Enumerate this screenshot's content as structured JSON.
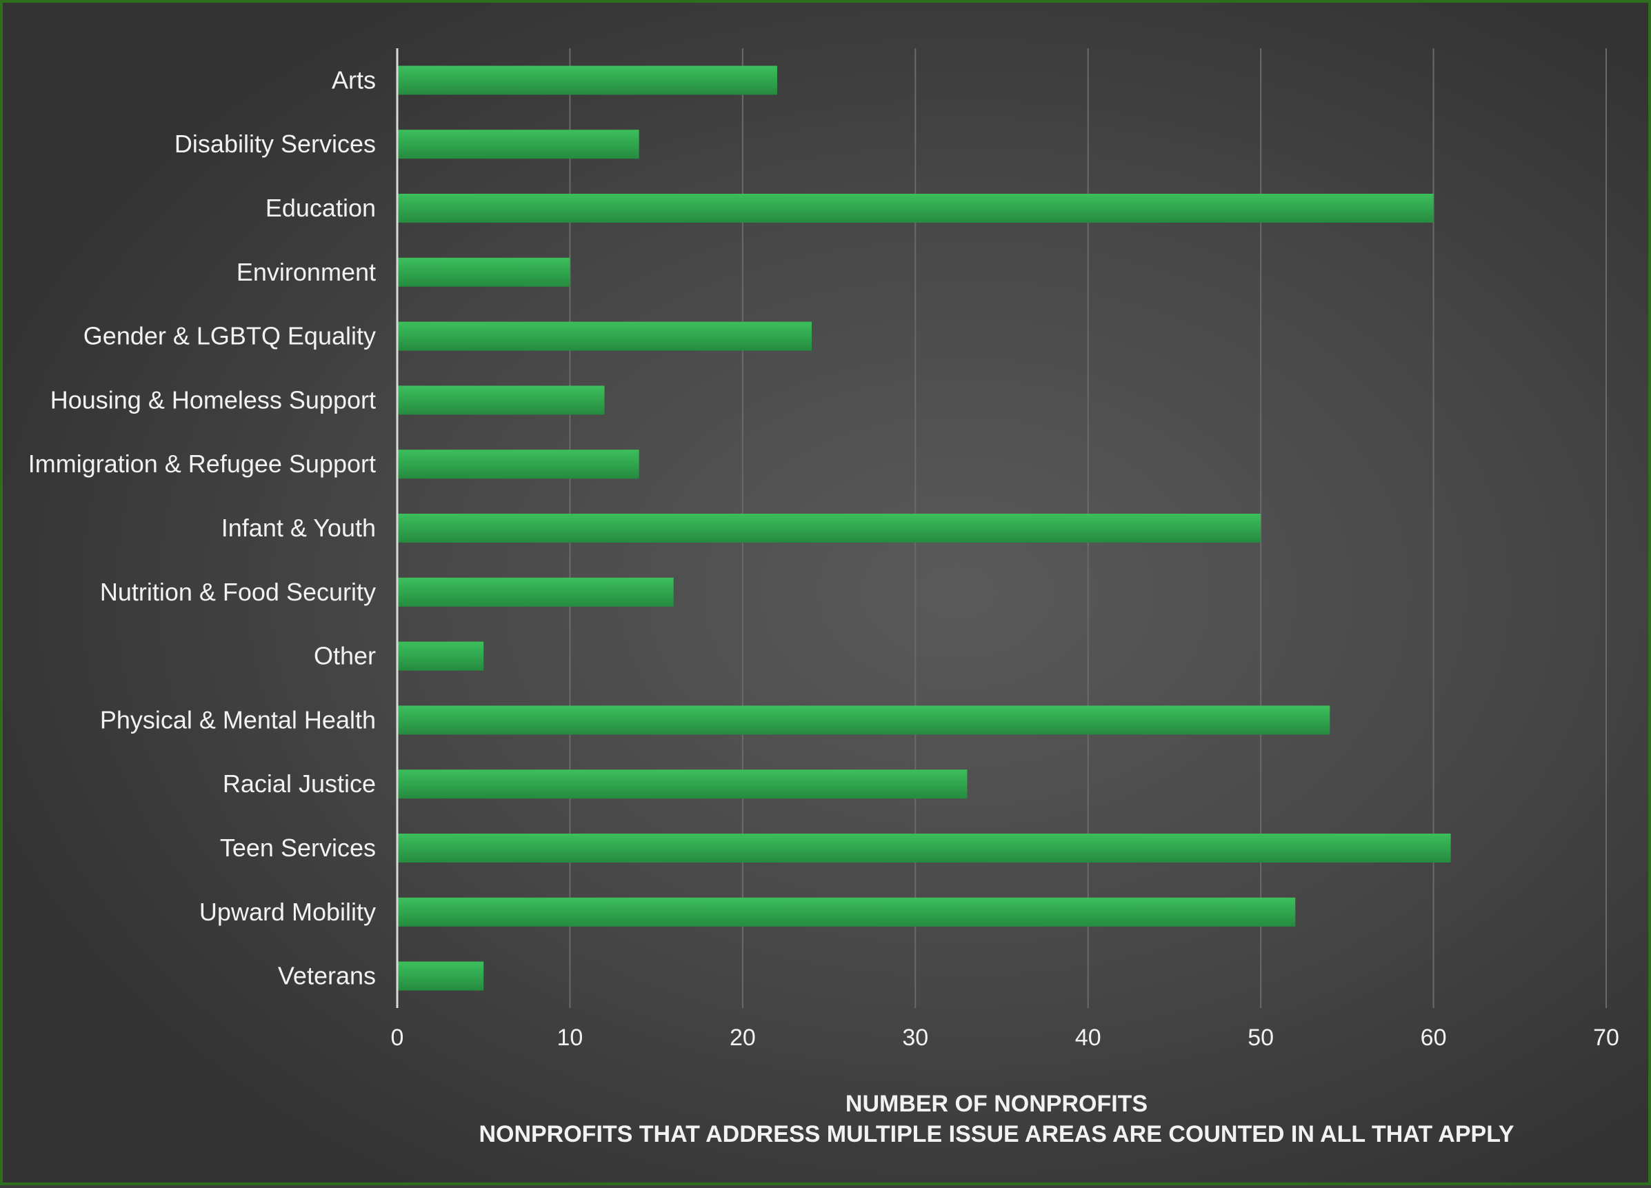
{
  "chart_data": {
    "type": "bar",
    "orientation": "horizontal",
    "title": "",
    "xlabel": "NUMBER OF NONPROFITS",
    "xlabel_note": "NONPROFITS THAT ADDRESS MULTIPLE ISSUE AREAS ARE COUNTED IN ALL THAT APPLY",
    "ylabel": "",
    "categories": [
      "Arts",
      "Disability Services",
      "Education",
      "Environment",
      "Gender & LGBTQ Equality",
      "Housing & Homeless Support",
      "Immigration & Refugee Support",
      "Infant & Youth",
      "Nutrition & Food Security",
      "Other",
      "Physical & Mental Health",
      "Racial Justice",
      "Teen Services",
      "Upward Mobility",
      "Veterans"
    ],
    "values": [
      22,
      14,
      60,
      10,
      24,
      12,
      14,
      50,
      16,
      5,
      54,
      33,
      61,
      52,
      5
    ],
    "xlim": [
      0,
      70
    ],
    "xticks": [
      "0",
      "10",
      "20",
      "30",
      "40",
      "50",
      "60",
      "70"
    ],
    "grid": true,
    "legend": "none",
    "bar_color": "#2fa34c",
    "background_color": "#474747",
    "border_color": "#2f6e1f"
  }
}
